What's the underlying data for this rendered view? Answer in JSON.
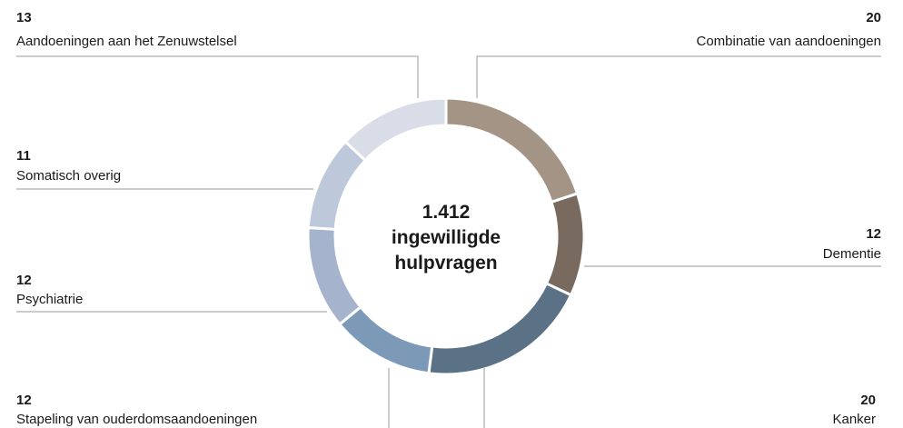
{
  "chart_data": {
    "type": "donut",
    "categories": [
      "Combinatie van aandoeningen",
      "Dementie",
      "Kanker",
      "Stapeling van ouderdomsaandoeningen",
      "Psychiatrie",
      "Somatisch overig",
      "Aandoeningen aan het Zenuwstelsel"
    ],
    "values": [
      20,
      12,
      20,
      12,
      12,
      11,
      13
    ],
    "colors": [
      "#a39486",
      "#786a5e",
      "#5a7186",
      "#7d99b8",
      "#a5b4cc",
      "#bec8db",
      "#d8dde8"
    ],
    "center_label": [
      "1.412",
      "ingewilligde",
      "hulpvragen"
    ]
  }
}
